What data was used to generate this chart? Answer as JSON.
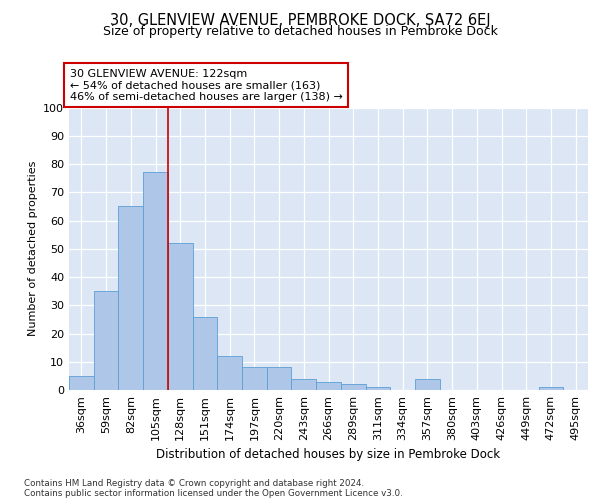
{
  "title": "30, GLENVIEW AVENUE, PEMBROKE DOCK, SA72 6EJ",
  "subtitle": "Size of property relative to detached houses in Pembroke Dock",
  "xlabel": "Distribution of detached houses by size in Pembroke Dock",
  "ylabel": "Number of detached properties",
  "categories": [
    "36sqm",
    "59sqm",
    "82sqm",
    "105sqm",
    "128sqm",
    "151sqm",
    "174sqm",
    "197sqm",
    "220sqm",
    "243sqm",
    "266sqm",
    "289sqm",
    "311sqm",
    "334sqm",
    "357sqm",
    "380sqm",
    "403sqm",
    "426sqm",
    "449sqm",
    "472sqm",
    "495sqm"
  ],
  "values": [
    5,
    35,
    65,
    77,
    52,
    26,
    12,
    8,
    8,
    4,
    3,
    2,
    1,
    0,
    4,
    0,
    0,
    0,
    0,
    1,
    0
  ],
  "bar_color": "#aec6e8",
  "bar_edge_color": "#5a9fd4",
  "vline_x": 3.5,
  "vline_color": "#cc0000",
  "annotation_text": "30 GLENVIEW AVENUE: 122sqm\n← 54% of detached houses are smaller (163)\n46% of semi-detached houses are larger (138) →",
  "annotation_box_color": "#ffffff",
  "annotation_box_edge": "#cc0000",
  "footnote_line1": "Contains HM Land Registry data © Crown copyright and database right 2024.",
  "footnote_line2": "Contains public sector information licensed under the Open Government Licence v3.0.",
  "ylim": [
    0,
    100
  ],
  "yticks": [
    0,
    10,
    20,
    30,
    40,
    50,
    60,
    70,
    80,
    90,
    100
  ],
  "background_color": "#dce6f5",
  "fig_background": "#ffffff",
  "title_fontsize": 10.5,
  "subtitle_fontsize": 9,
  "bar_width": 1.0,
  "grid_color": "#c0cce0"
}
